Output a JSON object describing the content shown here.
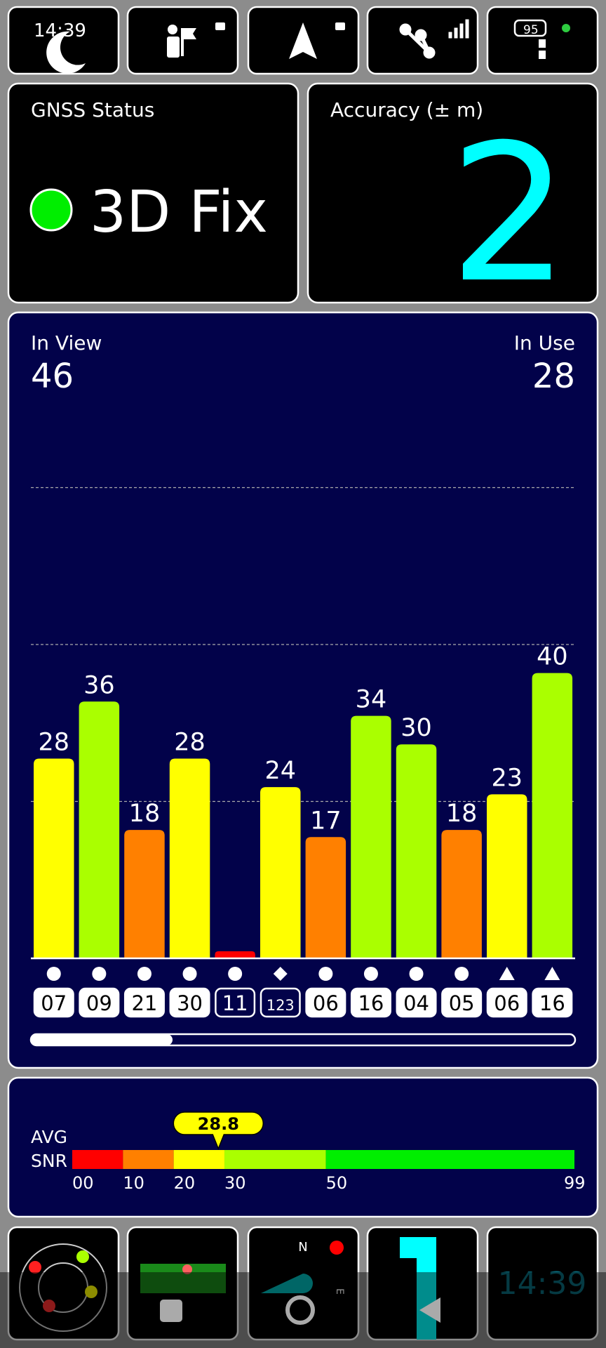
{
  "status_bar": {
    "time": "14:39",
    "battery": "95"
  },
  "gnss_status": {
    "title": "GNSS Status",
    "value": "3D Fix"
  },
  "accuracy": {
    "title": "Accuracy (± m)",
    "value": 2
  },
  "satellites": {
    "in_view_label": "In View",
    "in_view": 46,
    "in_use_label": "In Use",
    "in_use": 28
  },
  "chart_data": {
    "type": "bar",
    "categories": [
      "07",
      "09",
      "21",
      "30",
      "11",
      "123",
      "06",
      "16",
      "04",
      "05",
      "06",
      "16"
    ],
    "values": [
      28,
      36,
      18,
      28,
      1,
      24,
      17,
      34,
      30,
      18,
      23,
      40
    ],
    "value_labels": [
      "28",
      "36",
      "18",
      "28",
      null,
      "24",
      "17",
      "34",
      "30",
      "18",
      "23",
      "40"
    ],
    "colors": [
      "#ffff00",
      "#aaff00",
      "#ff8000",
      "#ffff00",
      "#ff0000",
      "#ffff00",
      "#ff8000",
      "#aaff00",
      "#aaff00",
      "#ff8000",
      "#ffff00",
      "#aaff00"
    ],
    "symbols": [
      "circle",
      "circle",
      "circle",
      "circle",
      "circle",
      "diamond",
      "circle",
      "circle",
      "circle",
      "circle",
      "triangle",
      "triangle"
    ],
    "used": [
      true,
      true,
      true,
      true,
      false,
      false,
      true,
      true,
      true,
      true,
      true,
      true
    ],
    "ylim": [
      0,
      88
    ],
    "yticks": [
      22,
      44,
      66
    ],
    "grid": true
  },
  "snr": {
    "label_lines": [
      "AVG",
      "SNR"
    ],
    "average": 28.8,
    "xlim": [
      0,
      99
    ],
    "xticks": [
      {
        "value": 0,
        "label": "00"
      },
      10,
      20,
      30,
      50,
      99
    ],
    "band_colors": [
      "#ff0000",
      "#ff8000",
      "#ffff00",
      "#aaff00",
      "#00ee00"
    ]
  },
  "bottom_bar": {
    "clock": "14:39",
    "compass_n": "N",
    "compass_e": "E"
  }
}
